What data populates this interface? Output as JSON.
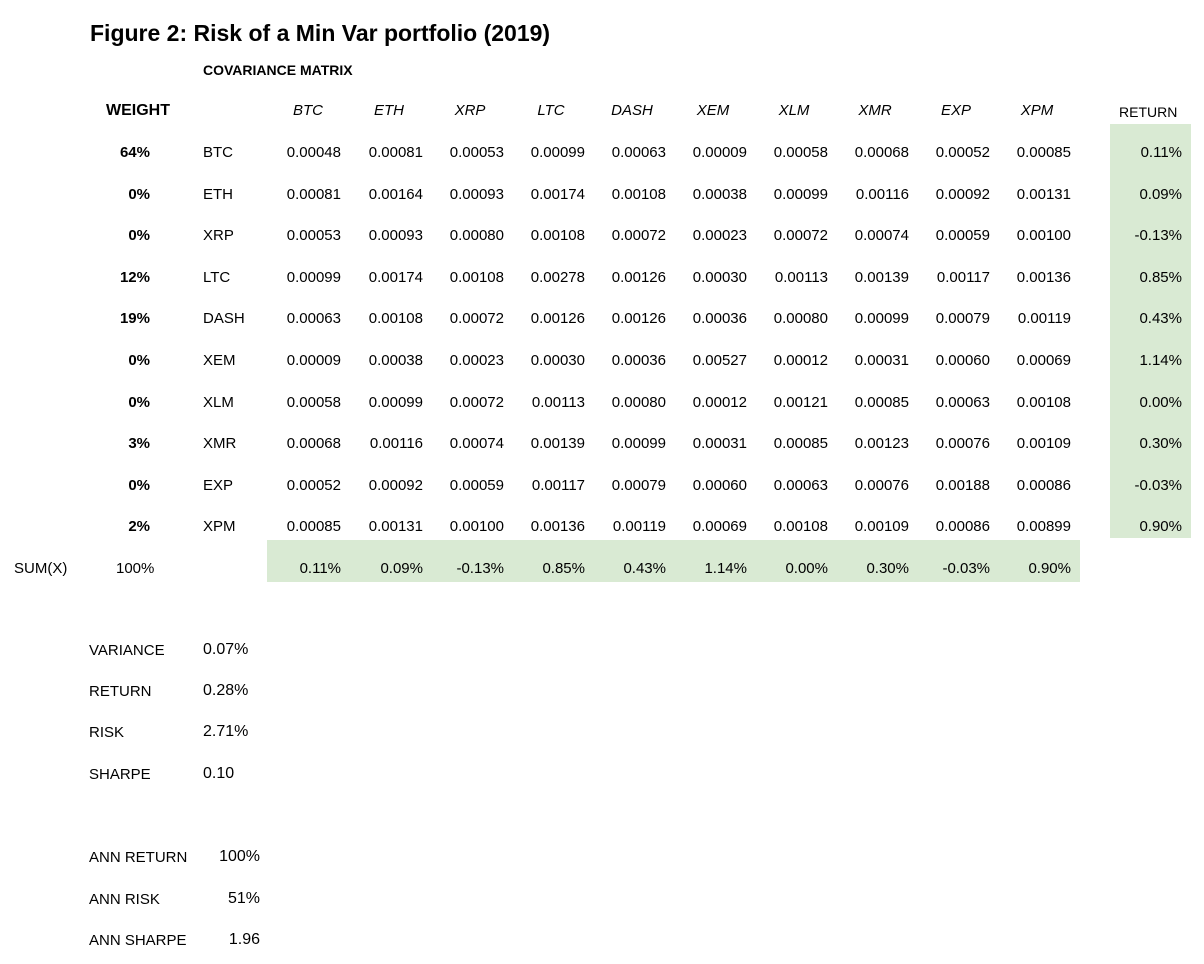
{
  "figure_title": "Figure 2:  Risk of a Min Var portfolio (2019)",
  "matrix_title": "COVARIANCE MATRIX",
  "weight_header": "WEIGHT",
  "return_header": "RETURN",
  "columns": [
    "BTC",
    "ETH",
    "XRP",
    "LTC",
    "DASH",
    "XEM",
    "XLM",
    "XMR",
    "EXP",
    "XPM"
  ],
  "rows": [
    {
      "weight": "64%",
      "asset": "BTC",
      "values": [
        "0.00048",
        "0.00081",
        "0.00053",
        "0.00099",
        "0.00063",
        "0.00009",
        "0.00058",
        "0.00068",
        "0.00052",
        "0.00085"
      ],
      "return": "0.11%"
    },
    {
      "weight": "0%",
      "asset": "ETH",
      "values": [
        "0.00081",
        "0.00164",
        "0.00093",
        "0.00174",
        "0.00108",
        "0.00038",
        "0.00099",
        "0.00116",
        "0.00092",
        "0.00131"
      ],
      "return": "0.09%"
    },
    {
      "weight": "0%",
      "asset": "XRP",
      "values": [
        "0.00053",
        "0.00093",
        "0.00080",
        "0.00108",
        "0.00072",
        "0.00023",
        "0.00072",
        "0.00074",
        "0.00059",
        "0.00100"
      ],
      "return": "-0.13%"
    },
    {
      "weight": "12%",
      "asset": "LTC",
      "values": [
        "0.00099",
        "0.00174",
        "0.00108",
        "0.00278",
        "0.00126",
        "0.00030",
        "0.00113",
        "0.00139",
        "0.00117",
        "0.00136"
      ],
      "return": "0.85%"
    },
    {
      "weight": "19%",
      "asset": "DASH",
      "values": [
        "0.00063",
        "0.00108",
        "0.00072",
        "0.00126",
        "0.00126",
        "0.00036",
        "0.00080",
        "0.00099",
        "0.00079",
        "0.00119"
      ],
      "return": "0.43%"
    },
    {
      "weight": "0%",
      "asset": "XEM",
      "values": [
        "0.00009",
        "0.00038",
        "0.00023",
        "0.00030",
        "0.00036",
        "0.00527",
        "0.00012",
        "0.00031",
        "0.00060",
        "0.00069"
      ],
      "return": "1.14%"
    },
    {
      "weight": "0%",
      "asset": "XLM",
      "values": [
        "0.00058",
        "0.00099",
        "0.00072",
        "0.00113",
        "0.00080",
        "0.00012",
        "0.00121",
        "0.00085",
        "0.00063",
        "0.00108"
      ],
      "return": "0.00%"
    },
    {
      "weight": "3%",
      "asset": "XMR",
      "values": [
        "0.00068",
        "0.00116",
        "0.00074",
        "0.00139",
        "0.00099",
        "0.00031",
        "0.00085",
        "0.00123",
        "0.00076",
        "0.00109"
      ],
      "return": "0.30%"
    },
    {
      "weight": "0%",
      "asset": "EXP",
      "values": [
        "0.00052",
        "0.00092",
        "0.00059",
        "0.00117",
        "0.00079",
        "0.00060",
        "0.00063",
        "0.00076",
        "0.00188",
        "0.00086"
      ],
      "return": "-0.03%"
    },
    {
      "weight": "2%",
      "asset": "XPM",
      "values": [
        "0.00085",
        "0.00131",
        "0.00100",
        "0.00136",
        "0.00119",
        "0.00069",
        "0.00108",
        "0.00109",
        "0.00086",
        "0.00899"
      ],
      "return": "0.90%"
    }
  ],
  "sum_row": {
    "label": "SUM(X)",
    "weight": "100%",
    "values": [
      "0.11%",
      "0.09%",
      "-0.13%",
      "0.85%",
      "0.43%",
      "1.14%",
      "0.00%",
      "0.30%",
      "-0.03%",
      "0.90%"
    ]
  },
  "stats": [
    {
      "label": "VARIANCE",
      "value": "0.07%"
    },
    {
      "label": "RETURN",
      "value": "0.28%"
    },
    {
      "label": "RISK",
      "value": "2.71%"
    },
    {
      "label": "SHARPE",
      "value": "0.10"
    }
  ],
  "ann_stats": [
    {
      "label": "ANN RETURN",
      "value": "100%"
    },
    {
      "label": "ANN RISK",
      "value": "51%"
    },
    {
      "label": "ANN SHARPE",
      "value": "1.96"
    }
  ],
  "colors": {
    "highlight": "#d9ead3"
  }
}
